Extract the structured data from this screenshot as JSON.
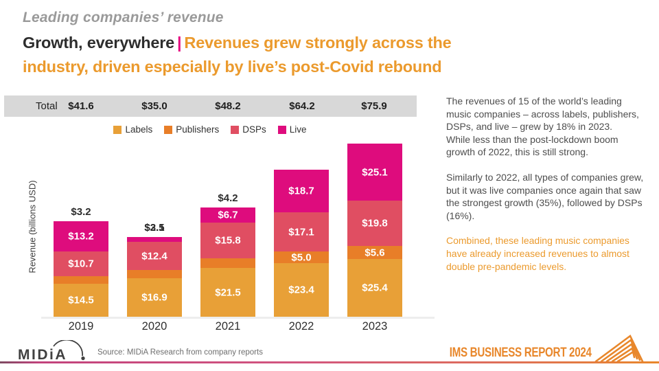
{
  "titles": {
    "kicker": "Leading companies’ revenue",
    "headline_black": "Growth, everywhere",
    "headline_separator": "|",
    "headline_orange": "Revenues grew strongly across the industry, driven especially by live’s post-Covid rebound"
  },
  "chart_data": {
    "type": "bar",
    "stacked": true,
    "categories": [
      "2019",
      "2020",
      "2021",
      "2022",
      "2023"
    ],
    "series": [
      {
        "name": "Labels",
        "color": "#e8a037",
        "values": [
          14.5,
          16.9,
          21.5,
          23.4,
          25.4
        ]
      },
      {
        "name": "Publishers",
        "color": "#e87e28",
        "values": [
          3.2,
          3.5,
          4.2,
          5.0,
          5.6
        ]
      },
      {
        "name": "DSPs",
        "color": "#e04e62",
        "values": [
          10.7,
          12.4,
          15.8,
          17.1,
          19.8
        ]
      },
      {
        "name": "Live",
        "color": "#de0c7d",
        "values": [
          13.2,
          2.1,
          6.7,
          18.7,
          25.1
        ]
      }
    ],
    "totals": {
      "label": "Total",
      "values": [
        "$41.6",
        "$35.0",
        "$48.2",
        "$64.2",
        "$75.9"
      ]
    },
    "value_prefix": "$",
    "ylabel": "Revenue (billions USD)",
    "xlabel": "",
    "ylim": [
      0,
      80
    ],
    "grid": false,
    "legend_position": "top",
    "data_labels": "inside-white"
  },
  "commentary": {
    "p1": "The revenues of 15 of the world’s leading music companies – across labels, publishers, DSPs, and live – grew by 18% in 2023.",
    "p2": "While less than the post-lockdown boom growth of 2022, this is still strong.",
    "p3": "Similarly to 2022, all types of companies grew, but it was live companies once again that saw the strongest growth (35%), followed by DSPs (16%).",
    "p4": "Combined, these leading music companies have already increased revenues to almost double pre-pandemic levels."
  },
  "footer": {
    "brand": "MIDiA",
    "source": "Source: MIDiA Research from company reports",
    "report_badge": "IMS BUSINESS REPORT 2024"
  },
  "colors": {
    "accent_orange": "#eb9a2d",
    "accent_magenta": "#e5097f",
    "totals_strip_bg": "#d8d8d8",
    "ims_orange": "#e8872b"
  }
}
